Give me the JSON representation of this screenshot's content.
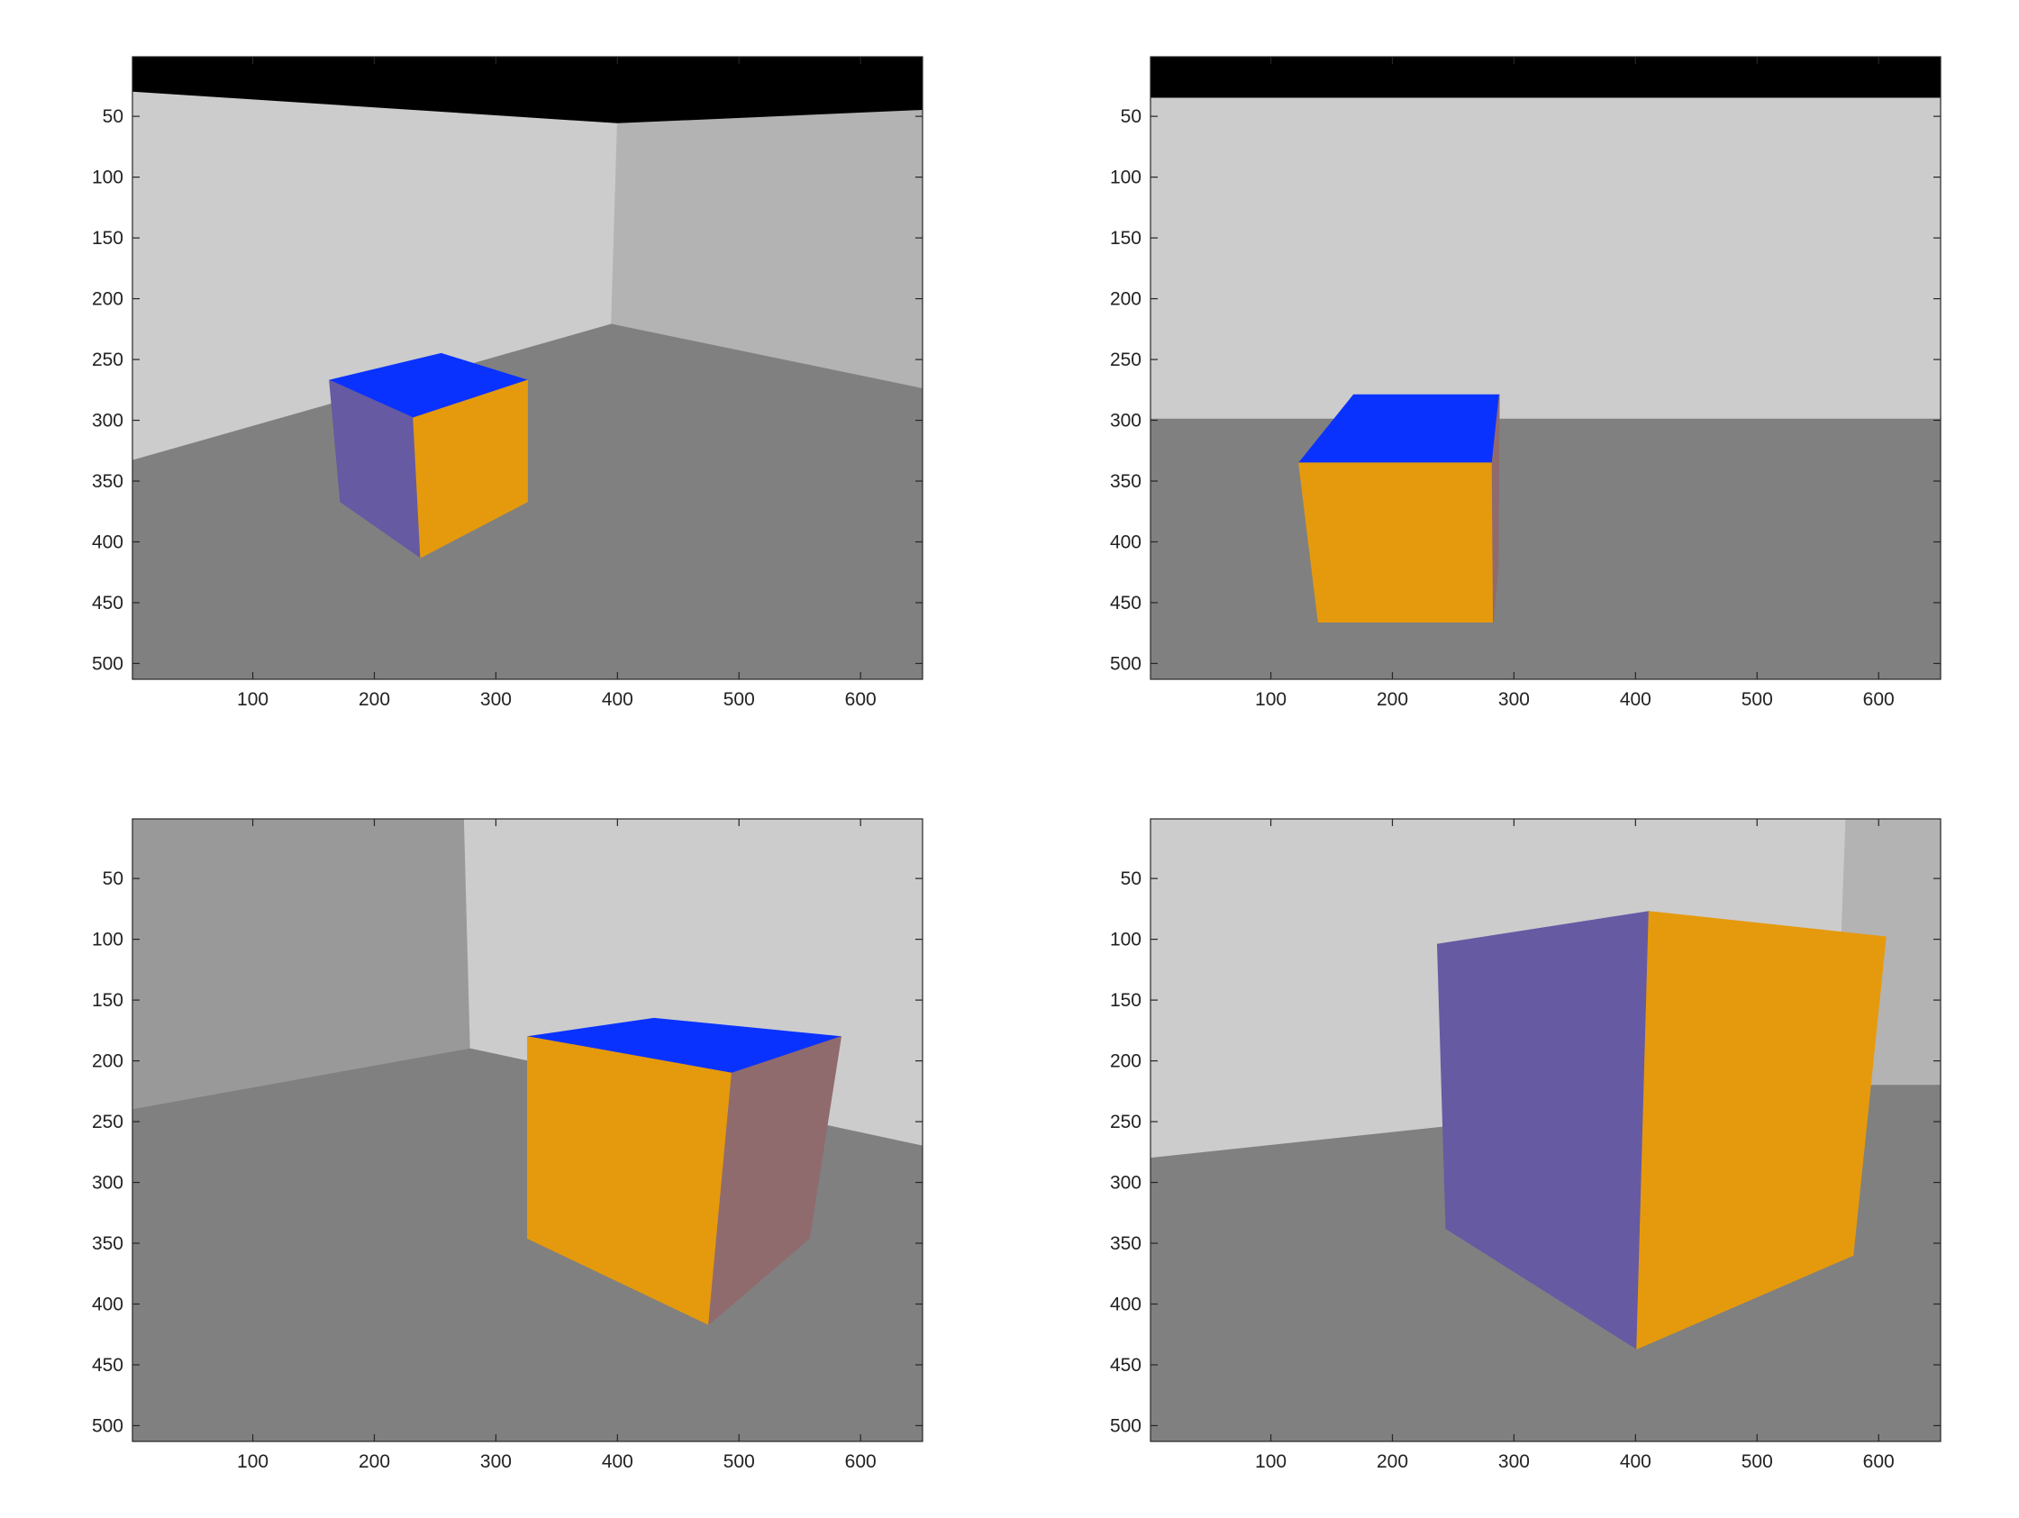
{
  "chart_data": [
    {
      "type": "image",
      "xlim": [
        1,
        651
      ],
      "ylim": [
        1,
        513
      ],
      "xticks": [
        100,
        200,
        300,
        400,
        500,
        600
      ],
      "yticks": [
        50,
        100,
        150,
        200,
        250,
        300,
        350,
        400,
        450,
        500
      ],
      "regions": [
        {
          "name": "ceiling",
          "color": "#000000",
          "points": [
            [
              1,
              1
            ],
            [
              651,
              1
            ],
            [
              651,
              45
            ],
            [
              400,
              56
            ],
            [
              1,
              30
            ]
          ]
        },
        {
          "name": "left-wall",
          "color": "#cccccc",
          "points": [
            [
              1,
              30
            ],
            [
              400,
              56
            ],
            [
              395,
              221
            ],
            [
              1,
              333
            ]
          ]
        },
        {
          "name": "right-wall",
          "color": "#b3b3b3",
          "points": [
            [
              400,
              56
            ],
            [
              651,
              45
            ],
            [
              651,
              274
            ],
            [
              395,
              221
            ]
          ]
        },
        {
          "name": "floor",
          "color": "#808080",
          "points": [
            [
              1,
              333
            ],
            [
              395,
              221
            ],
            [
              651,
              274
            ],
            [
              651,
              513
            ],
            [
              1,
              513
            ]
          ]
        },
        {
          "name": "cube-top",
          "color": "#0a32ff",
          "points": [
            [
              163,
              267
            ],
            [
              255,
              245
            ],
            [
              326,
              267
            ],
            [
              232,
              298
            ]
          ]
        },
        {
          "name": "cube-left",
          "color": "#665aa3",
          "points": [
            [
              163,
              267
            ],
            [
              232,
              298
            ],
            [
              238,
              413
            ],
            [
              172,
              367
            ]
          ]
        },
        {
          "name": "cube-front",
          "color": "#e59a0d",
          "points": [
            [
              232,
              298
            ],
            [
              326,
              267
            ],
            [
              326,
              367
            ],
            [
              238,
              413
            ]
          ]
        }
      ]
    },
    {
      "type": "image",
      "xlim": [
        1,
        651
      ],
      "ylim": [
        1,
        513
      ],
      "xticks": [
        100,
        200,
        300,
        400,
        500,
        600
      ],
      "yticks": [
        50,
        100,
        150,
        200,
        250,
        300,
        350,
        400,
        450,
        500
      ],
      "regions": [
        {
          "name": "ceiling",
          "color": "#000000",
          "points": [
            [
              1,
              1
            ],
            [
              651,
              1
            ],
            [
              651,
              35
            ],
            [
              1,
              35
            ]
          ]
        },
        {
          "name": "wall",
          "color": "#cccccc",
          "points": [
            [
              1,
              35
            ],
            [
              651,
              35
            ],
            [
              651,
              299
            ],
            [
              1,
              299
            ]
          ]
        },
        {
          "name": "floor",
          "color": "#808080",
          "points": [
            [
              1,
              299
            ],
            [
              651,
              299
            ],
            [
              651,
              513
            ],
            [
              1,
              513
            ]
          ]
        },
        {
          "name": "cube-top",
          "color": "#0a32ff",
          "points": [
            [
              168,
              279
            ],
            [
              288,
              279
            ],
            [
              282,
              335
            ],
            [
              123,
              335
            ]
          ]
        },
        {
          "name": "cube-front",
          "color": "#e59a0d",
          "points": [
            [
              123,
              335
            ],
            [
              282,
              335
            ],
            [
              283,
              466
            ],
            [
              139,
              466
            ]
          ]
        },
        {
          "name": "cube-side",
          "color": "#906b6e",
          "points": [
            [
              288,
              279
            ],
            [
              282,
              335
            ],
            [
              283,
              466
            ],
            [
              287,
              420
            ]
          ]
        }
      ]
    },
    {
      "type": "image",
      "xlim": [
        1,
        651
      ],
      "ylim": [
        1,
        513
      ],
      "xticks": [
        100,
        200,
        300,
        400,
        500,
        600
      ],
      "yticks": [
        50,
        100,
        150,
        200,
        250,
        300,
        350,
        400,
        450,
        500
      ],
      "regions": [
        {
          "name": "left-wall",
          "color": "#999999",
          "points": [
            [
              1,
              1
            ],
            [
              274,
              1
            ],
            [
              279,
              190
            ],
            [
              1,
              240
            ]
          ]
        },
        {
          "name": "right-wall",
          "color": "#cccccc",
          "points": [
            [
              274,
              1
            ],
            [
              651,
              1
            ],
            [
              651,
              270
            ],
            [
              279,
              190
            ]
          ]
        },
        {
          "name": "floor",
          "color": "#808080",
          "points": [
            [
              1,
              240
            ],
            [
              279,
              190
            ],
            [
              651,
              270
            ],
            [
              651,
              513
            ],
            [
              1,
              513
            ]
          ]
        },
        {
          "name": "cube-top",
          "color": "#0a32ff",
          "points": [
            [
              326,
              180
            ],
            [
              430,
              165
            ],
            [
              584,
              180
            ],
            [
              494,
              210
            ]
          ]
        },
        {
          "name": "cube-front",
          "color": "#e59a0d",
          "points": [
            [
              326,
              180
            ],
            [
              494,
              210
            ],
            [
              475,
              417
            ],
            [
              326,
              346
            ]
          ]
        },
        {
          "name": "cube-side",
          "color": "#906b6e",
          "points": [
            [
              494,
              210
            ],
            [
              584,
              180
            ],
            [
              558,
              346
            ],
            [
              475,
              417
            ]
          ]
        }
      ]
    },
    {
      "type": "image",
      "xlim": [
        1,
        651
      ],
      "ylim": [
        1,
        513
      ],
      "xticks": [
        100,
        200,
        300,
        400,
        500,
        600
      ],
      "yticks": [
        50,
        100,
        150,
        200,
        250,
        300,
        350,
        400,
        450,
        500
      ],
      "regions": [
        {
          "name": "left-wall",
          "color": "#cccccc",
          "points": [
            [
              1,
              1
            ],
            [
              573,
              1
            ],
            [
              565,
              220
            ],
            [
              1,
              280
            ]
          ]
        },
        {
          "name": "right-wall",
          "color": "#b3b3b3",
          "points": [
            [
              573,
              1
            ],
            [
              651,
              1
            ],
            [
              651,
              220
            ],
            [
              565,
              220
            ]
          ]
        },
        {
          "name": "floor",
          "color": "#808080",
          "points": [
            [
              1,
              280
            ],
            [
              565,
              220
            ],
            [
              651,
              220
            ],
            [
              651,
              513
            ],
            [
              1,
              513
            ]
          ]
        },
        {
          "name": "cube-left",
          "color": "#665aa3",
          "points": [
            [
              237,
              104
            ],
            [
              411,
              77
            ],
            [
              401,
              437
            ],
            [
              244,
              338
            ]
          ]
        },
        {
          "name": "cube-front",
          "color": "#e59a0d",
          "points": [
            [
              411,
              77
            ],
            [
              606,
              98
            ],
            [
              579,
              360
            ],
            [
              401,
              437
            ]
          ]
        }
      ]
    }
  ]
}
